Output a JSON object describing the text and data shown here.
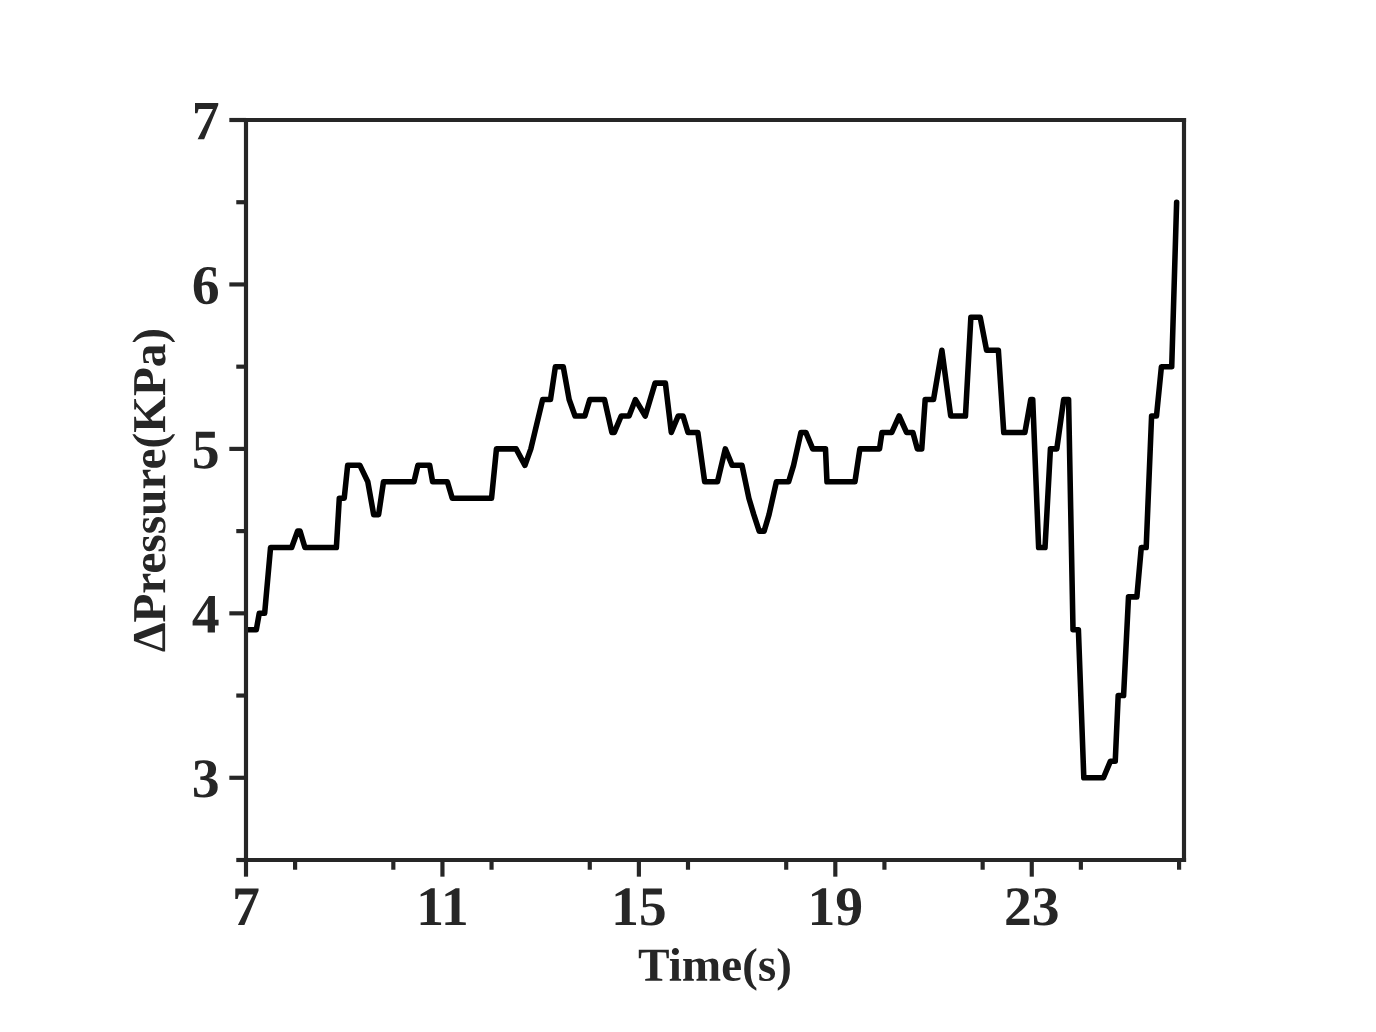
{
  "chart_data": {
    "type": "line",
    "xlabel": "Time(s)",
    "ylabel": "ΔPressure(KPa)",
    "xlim": [
      7,
      26.1
    ],
    "ylim": [
      2.5,
      7
    ],
    "xticks": [
      7,
      11,
      15,
      19,
      23
    ],
    "yticks": [
      3,
      4,
      5,
      6,
      7
    ],
    "series": [
      {
        "color": "#000000",
        "x": [
          7,
          7.21,
          7.27,
          7.38,
          7.5,
          7.93,
          8.05,
          8.1,
          8.2,
          8.84,
          8.9,
          9.0,
          9.07,
          9.32,
          9.48,
          9.6,
          9.7,
          9.8,
          10.42,
          10.5,
          10.74,
          10.8,
          11.1,
          11.2,
          12.0,
          12.1,
          12.5,
          12.68,
          12.8,
          13.04,
          13.2,
          13.3,
          13.46,
          13.58,
          13.7,
          13.9,
          14.0,
          14.3,
          14.45,
          14.5,
          14.64,
          14.8,
          14.93,
          15.13,
          15.33,
          15.54,
          15.66,
          15.8,
          15.9,
          16.0,
          16.2,
          16.34,
          16.6,
          16.76,
          16.9,
          17.1,
          17.24,
          17.34,
          17.45,
          17.55,
          17.65,
          17.8,
          18.05,
          18.15,
          18.3,
          18.4,
          18.54,
          18.8,
          18.83,
          19.4,
          19.5,
          19.9,
          19.95,
          20.15,
          20.3,
          20.45,
          20.58,
          20.67,
          20.76,
          20.83,
          21.0,
          21.17,
          21.35,
          21.65,
          21.76,
          21.95,
          22.08,
          22.32,
          22.43,
          22.86,
          22.98,
          23.02,
          23.14,
          23.27,
          23.38,
          23.51,
          23.65,
          23.75,
          23.84,
          23.95,
          24.06,
          24.46,
          24.6,
          24.7,
          24.76,
          24.87,
          24.97,
          25.14,
          25.23,
          25.33,
          25.44,
          25.54,
          25.64,
          25.85,
          25.95
        ],
        "values": [
          3.9,
          3.9,
          4.0,
          4.0,
          4.4,
          4.4,
          4.5,
          4.5,
          4.4,
          4.4,
          4.7,
          4.7,
          4.9,
          4.9,
          4.8,
          4.6,
          4.6,
          4.8,
          4.8,
          4.9,
          4.9,
          4.8,
          4.8,
          4.7,
          4.7,
          5.0,
          5.0,
          4.9,
          5.0,
          5.3,
          5.3,
          5.5,
          5.5,
          5.3,
          5.2,
          5.2,
          5.3,
          5.3,
          5.1,
          5.1,
          5.2,
          5.2,
          5.3,
          5.2,
          5.4,
          5.4,
          5.1,
          5.2,
          5.2,
          5.1,
          5.1,
          4.8,
          4.8,
          5.0,
          4.9,
          4.9,
          4.7,
          4.6,
          4.5,
          4.5,
          4.6,
          4.8,
          4.8,
          4.9,
          5.1,
          5.1,
          5.0,
          5.0,
          4.8,
          4.8,
          5.0,
          5.0,
          5.1,
          5.1,
          5.2,
          5.1,
          5.1,
          5.0,
          5.0,
          5.3,
          5.3,
          5.6,
          5.2,
          5.2,
          5.8,
          5.8,
          5.6,
          5.6,
          5.1,
          5.1,
          5.3,
          5.3,
          4.4,
          4.4,
          5.0,
          5.0,
          5.3,
          5.3,
          3.9,
          3.9,
          3.0,
          3.0,
          3.1,
          3.1,
          3.5,
          3.5,
          4.1,
          4.1,
          4.4,
          4.4,
          5.2,
          5.2,
          5.5,
          5.5,
          6.5
        ]
      }
    ]
  }
}
